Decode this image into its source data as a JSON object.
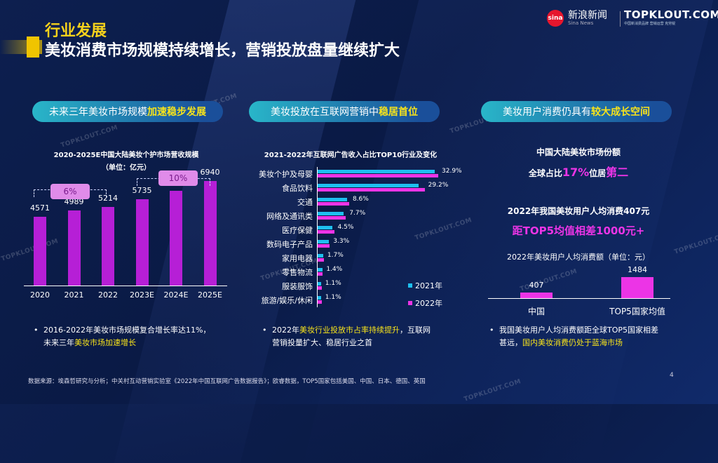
{
  "header": {
    "section_title": "行业发展",
    "main_title": "美妆消费市场规模持续增长，营销投放盘量继续扩大",
    "sina_logo_mark": "sina",
    "sina_logo_text": "新浪新闻",
    "sina_logo_sub": "Sina News",
    "topklout_logo": "TOPKLOUT.COM",
    "topklout_sub": "中国新消费品牌 营销运营 克劳锐"
  },
  "banners": [
    {
      "prefix": "未来三年美妆市场规模",
      "highlight": "加速稳步发展"
    },
    {
      "prefix": "美妆投放在互联网营销中",
      "highlight": "稳居首位"
    },
    {
      "prefix": "美妆用户消费仍具有",
      "highlight": "较大成长空间"
    }
  ],
  "watermark": "TOPKLOUT.COM",
  "chart_data": [
    {
      "type": "bar",
      "title": "2020-2025E中国大陆美妆个护市场营收规模",
      "subtitle": "（单位：亿元）",
      "categories": [
        "2020",
        "2021",
        "2022",
        "2023E",
        "2024E",
        "2025E"
      ],
      "values": [
        4571,
        4989,
        5214,
        5735,
        6309,
        6940
      ],
      "annotations": [
        "6%",
        "10%"
      ],
      "color": "#b61fd6"
    },
    {
      "type": "bar",
      "orientation": "horizontal",
      "title": "2021-2022年互联网广告收入占比TOP10行业及变化",
      "categories": [
        "美妆个护及母婴",
        "食品饮料",
        "交通",
        "网络及通讯类",
        "医疗保健",
        "数码电子产品",
        "家用电器",
        "零售物流",
        "服装服饰",
        "旅游/娱乐/休闲"
      ],
      "series": [
        {
          "name": "2021年",
          "color": "#1ec0f0",
          "values": [
            32.0,
            27.5,
            8.0,
            7.0,
            4.0,
            3.0,
            1.5,
            1.3,
            1.0,
            1.0
          ]
        },
        {
          "name": "2022年",
          "color": "#ec34e6",
          "values": [
            32.9,
            29.2,
            8.6,
            7.7,
            4.5,
            3.3,
            1.7,
            1.4,
            1.1,
            1.1
          ]
        }
      ],
      "data_labels": [
        "32.9%",
        "29.2%",
        "8.6%",
        "7.7%",
        "4.5%",
        "3.3%",
        "1.7%",
        "1.4%",
        "1.1%",
        "1.1%"
      ],
      "xlim": [
        0,
        35
      ]
    },
    {
      "type": "bar",
      "title": "2022年美妆用户人均消费额（单位：元）",
      "categories": [
        "中国",
        "TOP5国家均值"
      ],
      "values": [
        407,
        1484
      ],
      "color": "#ec34e6"
    }
  ],
  "market_share": {
    "title": "中国大陆美妆市场份额",
    "line_prefix": "全球占比",
    "line_highlight1": "17%",
    "line_middle": "位居",
    "line_highlight2": "第二",
    "spend_title": "2022年我国美妆用户人均消费407元",
    "gap_text": "距TOP5均值相差1000元+"
  },
  "bullets": [
    {
      "parts": [
        "2016-2022年美妆市场规模复合增长率达11%，",
        "未来三年",
        "美妆市场加速增长",
        ""
      ]
    },
    {
      "parts": [
        "2022年",
        "美妆行业投放市占率持续提升",
        "，互联网",
        "营销投量扩大、稳居行业之首"
      ]
    },
    {
      "parts": [
        "我国美妆用户人均消费额距全球TOP5国家相差",
        "甚远，",
        "国内美妆消费仍处于蓝海市场",
        ""
      ]
    }
  ],
  "footer": "数据来源：埃森哲研究与分析；中关村互动营销实验室《2022年中国互联网广告数据报告》；欧睿数据，TOP5国家包括美国、中国、日本、德国、英国",
  "page_number": "4"
}
